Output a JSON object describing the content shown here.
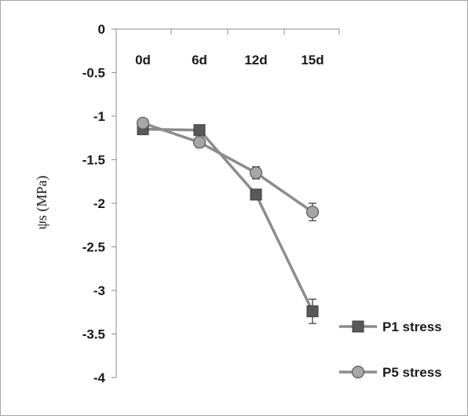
{
  "chart_data": {
    "type": "line",
    "categories": [
      "0d",
      "6d",
      "12d",
      "15d"
    ],
    "ylabel": "ψs (MPa)",
    "ylim": [
      -4,
      0
    ],
    "yticks": [
      0,
      -0.5,
      -1,
      -1.5,
      -2,
      -2.5,
      -3,
      -3.5,
      -4
    ],
    "ytick_labels": [
      "0",
      "-0.5",
      "-1",
      "-1.5",
      "-2",
      "-2.5",
      "-3",
      "-3.5",
      "-4"
    ],
    "category_labels_position": "top",
    "legend_position": "right-bottom",
    "series": [
      {
        "name": "P1 stress",
        "marker": "square",
        "values": [
          -1.15,
          -1.16,
          -1.9,
          -3.24
        ],
        "errors": [
          0.03,
          0.03,
          0.04,
          0.14
        ],
        "color": "#595959"
      },
      {
        "name": "P5 stress",
        "marker": "circle",
        "values": [
          -1.08,
          -1.3,
          -1.65,
          -2.1
        ],
        "errors": [
          0.03,
          0.06,
          0.07,
          0.1
        ],
        "color": "#a6a6a6"
      }
    ]
  }
}
